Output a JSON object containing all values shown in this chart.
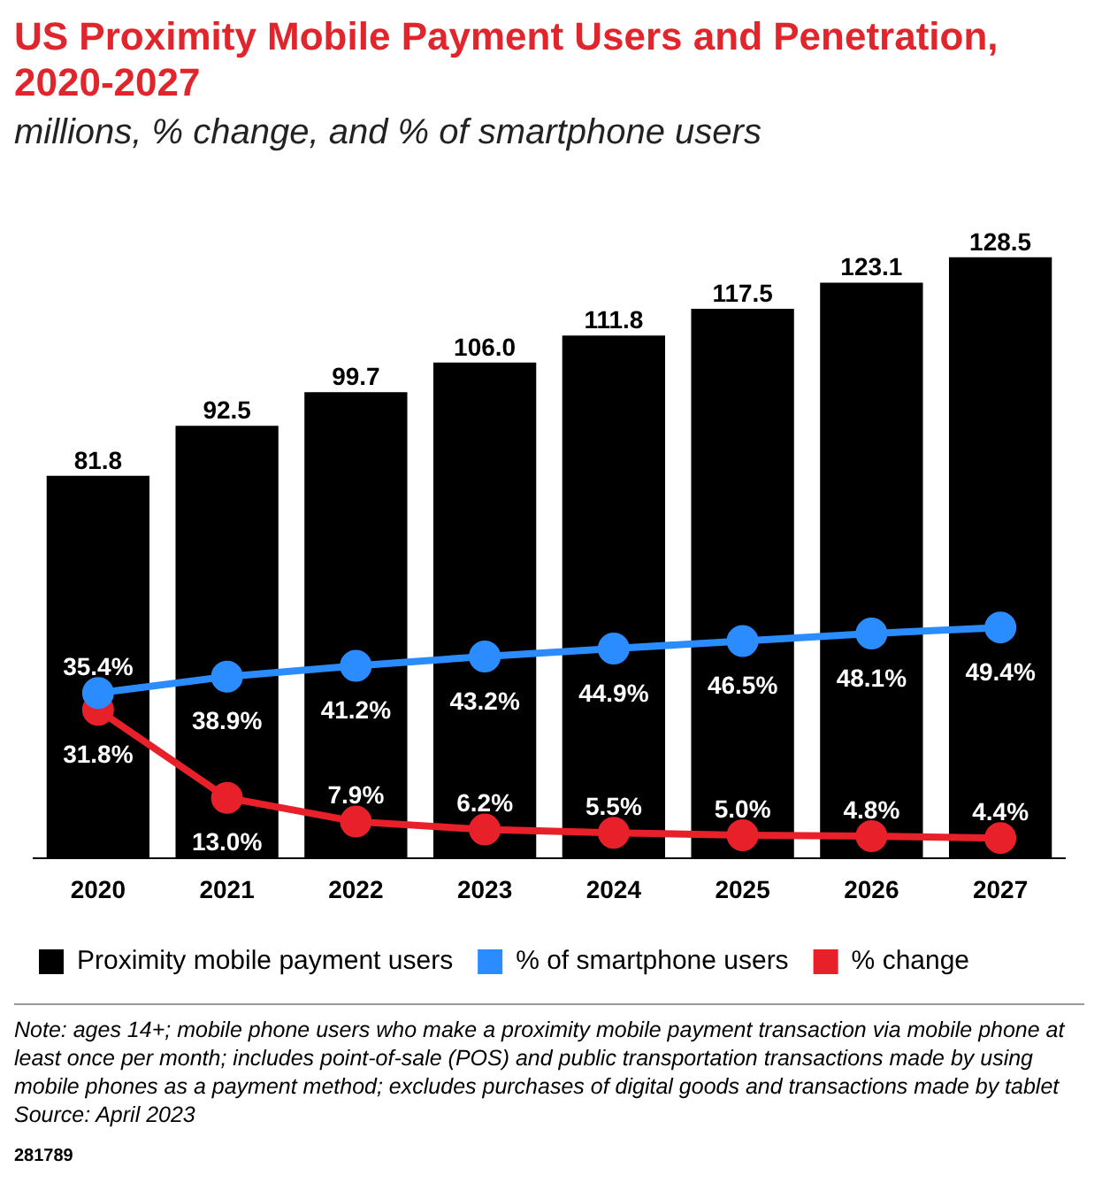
{
  "chart_data": {
    "type": "bar",
    "title": "US Proximity Mobile Payment Users and Penetration, 2020-2027",
    "subtitle": "millions, % change, and % of smartphone users",
    "categories": [
      "2020",
      "2021",
      "2022",
      "2023",
      "2024",
      "2025",
      "2026",
      "2027"
    ],
    "series": [
      {
        "name": "Proximity mobile payment users",
        "color": "#000000",
        "values": [
          81.8,
          92.5,
          99.7,
          106.0,
          111.8,
          117.5,
          123.1,
          128.5
        ],
        "value_labels": [
          "81.8",
          "92.5",
          "99.7",
          "106.0",
          "111.8",
          "117.5",
          "123.1",
          "128.5"
        ]
      },
      {
        "name": "% of smartphone users",
        "type": "line",
        "color": "#2a8cff",
        "values": [
          35.4,
          38.9,
          41.2,
          43.2,
          44.9,
          46.5,
          48.1,
          49.4
        ],
        "value_labels": [
          "35.4%",
          "38.9%",
          "41.2%",
          "43.2%",
          "44.9%",
          "46.5%",
          "48.1%",
          "49.4%"
        ]
      },
      {
        "name": "% change",
        "type": "line",
        "color": "#e8202a",
        "values": [
          31.8,
          13.0,
          7.9,
          6.2,
          5.5,
          5.0,
          4.8,
          4.4
        ],
        "value_labels": [
          "31.8%",
          "13.0%",
          "7.9%",
          "6.2%",
          "5.5%",
          "5.0%",
          "4.8%",
          "4.4%"
        ]
      }
    ],
    "marker": "circle",
    "line_style": "solid",
    "grid": false,
    "legend": "bottom",
    "tick_labels": "x",
    "annotations": [
      "Note: ages 14+; mobile phone users who make a proximity mobile payment transaction via mobile phone at least once per month; includes point-of-sale (POS) and public transportation transactions made by using mobile phones as a payment method; excludes purchases of digital goods and transactions made by tablet",
      "Source: April 2023",
      "281789"
    ]
  }
}
